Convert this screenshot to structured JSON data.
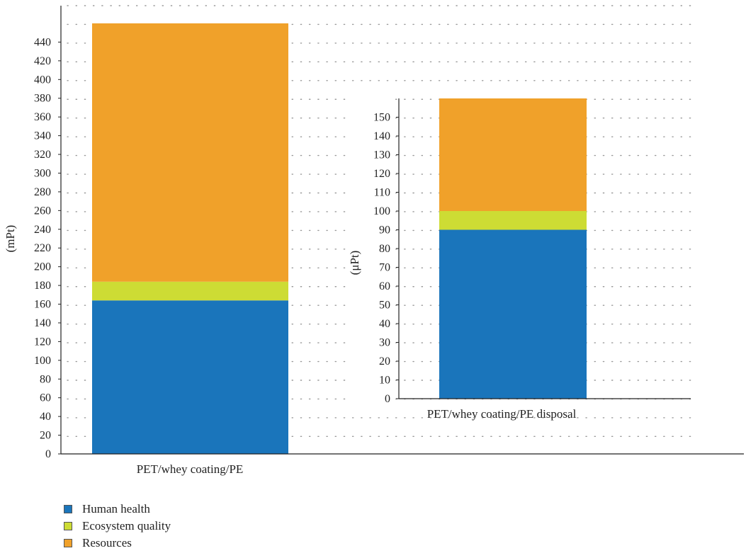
{
  "chart_data": [
    {
      "type": "bar",
      "stacked": true,
      "categories": [
        "PET/whey coating/PE"
      ],
      "series": [
        {
          "name": "Human health",
          "values": [
            164
          ],
          "color": "#1a75bb"
        },
        {
          "name": "Ecosystem quality",
          "values": [
            20
          ],
          "color": "#cddc34"
        },
        {
          "name": "Resources",
          "values": [
            276
          ],
          "color": "#f0a12a"
        }
      ],
      "ylabel": "(mPt)",
      "ylim": [
        0,
        460
      ],
      "yticks": [
        0,
        20,
        40,
        60,
        80,
        100,
        120,
        140,
        160,
        180,
        200,
        220,
        240,
        260,
        280,
        300,
        320,
        340,
        360,
        380,
        400,
        420,
        440
      ],
      "grid": true
    },
    {
      "type": "bar",
      "stacked": true,
      "inset": true,
      "categories": [
        "PET/whey coating/PE disposal"
      ],
      "series": [
        {
          "name": "Human health",
          "values": [
            90
          ],
          "color": "#1a75bb"
        },
        {
          "name": "Ecosystem quality",
          "values": [
            10
          ],
          "color": "#cddc34"
        },
        {
          "name": "Resources",
          "values": [
            60
          ],
          "color": "#f0a12a"
        }
      ],
      "ylabel": "(μPt)",
      "ylim": [
        0,
        160
      ],
      "yticks": [
        0,
        10,
        20,
        30,
        40,
        50,
        60,
        70,
        80,
        90,
        100,
        110,
        120,
        130,
        140,
        150
      ],
      "grid": true
    }
  ],
  "legend": {
    "placement": "bottom-left",
    "items": [
      {
        "label": "Human health",
        "color": "#1a75bb"
      },
      {
        "label": "Ecosystem quality",
        "color": "#cddc34"
      },
      {
        "label": "Resources",
        "color": "#f0a12a"
      }
    ]
  }
}
